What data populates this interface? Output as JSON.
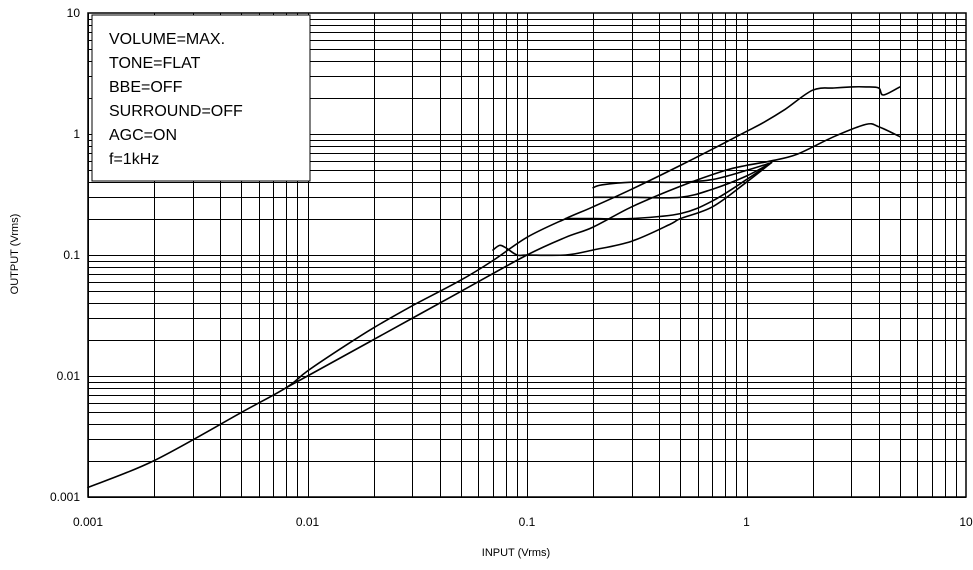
{
  "chart_data": {
    "type": "line",
    "xlabel": "INPUT (Vrms)",
    "ylabel": "OUTPUT (Vrms)",
    "xscale": "log",
    "yscale": "log",
    "xlim": [
      0.001,
      10
    ],
    "ylim": [
      0.001,
      10
    ],
    "xticks": [
      "0.001",
      "0.01",
      "0.1",
      "1",
      "10"
    ],
    "yticks": [
      "0.001",
      "0.01",
      "0.1",
      "1",
      "10"
    ],
    "grid": true,
    "legend_position": "top-left",
    "annotation_lines": [
      "VOLUME=MAX.",
      "TONE=FLAT",
      "BBE=OFF",
      "SURROUND=OFF",
      "AGC=ON",
      "f=1kHz"
    ],
    "series": [
      {
        "x": [
          0.001,
          0.002,
          0.005,
          0.008,
          0.01,
          0.015,
          0.02,
          0.03,
          0.05,
          0.07,
          0.1,
          0.15,
          0.2,
          0.3,
          0.5,
          0.7,
          1.0,
          1.2,
          1.5,
          2.0,
          2.5,
          3.0,
          3.5,
          4.0,
          4.2,
          5.0
        ],
        "y": [
          0.0012,
          0.002,
          0.005,
          0.008,
          0.011,
          0.018,
          0.025,
          0.038,
          0.062,
          0.09,
          0.14,
          0.2,
          0.25,
          0.35,
          0.55,
          0.75,
          1.05,
          1.25,
          1.6,
          2.3,
          2.4,
          2.45,
          2.45,
          2.4,
          2.1,
          2.45
        ]
      },
      {
        "x": [
          0.008,
          0.01,
          0.02,
          0.05,
          0.1,
          0.15,
          0.2,
          0.3,
          0.5,
          0.8,
          1.0,
          1.3,
          1.7,
          2.5,
          3.5,
          4.0,
          5.0
        ],
        "y": [
          0.008,
          0.01,
          0.02,
          0.05,
          0.1,
          0.14,
          0.17,
          0.25,
          0.37,
          0.5,
          0.55,
          0.6,
          0.68,
          0.95,
          1.2,
          1.15,
          0.95
        ]
      },
      {
        "x": [
          0.07,
          0.075,
          0.08,
          0.09,
          0.1,
          0.15,
          0.2,
          0.3,
          0.45,
          0.5,
          0.7,
          1.0,
          1.3
        ],
        "y": [
          0.11,
          0.12,
          0.115,
          0.1,
          0.1,
          0.1,
          0.11,
          0.13,
          0.18,
          0.2,
          0.25,
          0.4,
          0.58
        ]
      },
      {
        "x": [
          0.15,
          0.2,
          0.3,
          0.5,
          0.7,
          1.0,
          1.3
        ],
        "y": [
          0.2,
          0.2,
          0.2,
          0.22,
          0.28,
          0.42,
          0.58
        ]
      },
      {
        "x": [
          0.2,
          0.3,
          0.5,
          0.7,
          1.0,
          1.3
        ],
        "y": [
          0.3,
          0.3,
          0.3,
          0.35,
          0.45,
          0.58
        ]
      },
      {
        "x": [
          0.2,
          0.22,
          0.3,
          0.5,
          0.7,
          1.0,
          1.3
        ],
        "y": [
          0.36,
          0.38,
          0.4,
          0.4,
          0.42,
          0.5,
          0.58
        ]
      }
    ]
  }
}
